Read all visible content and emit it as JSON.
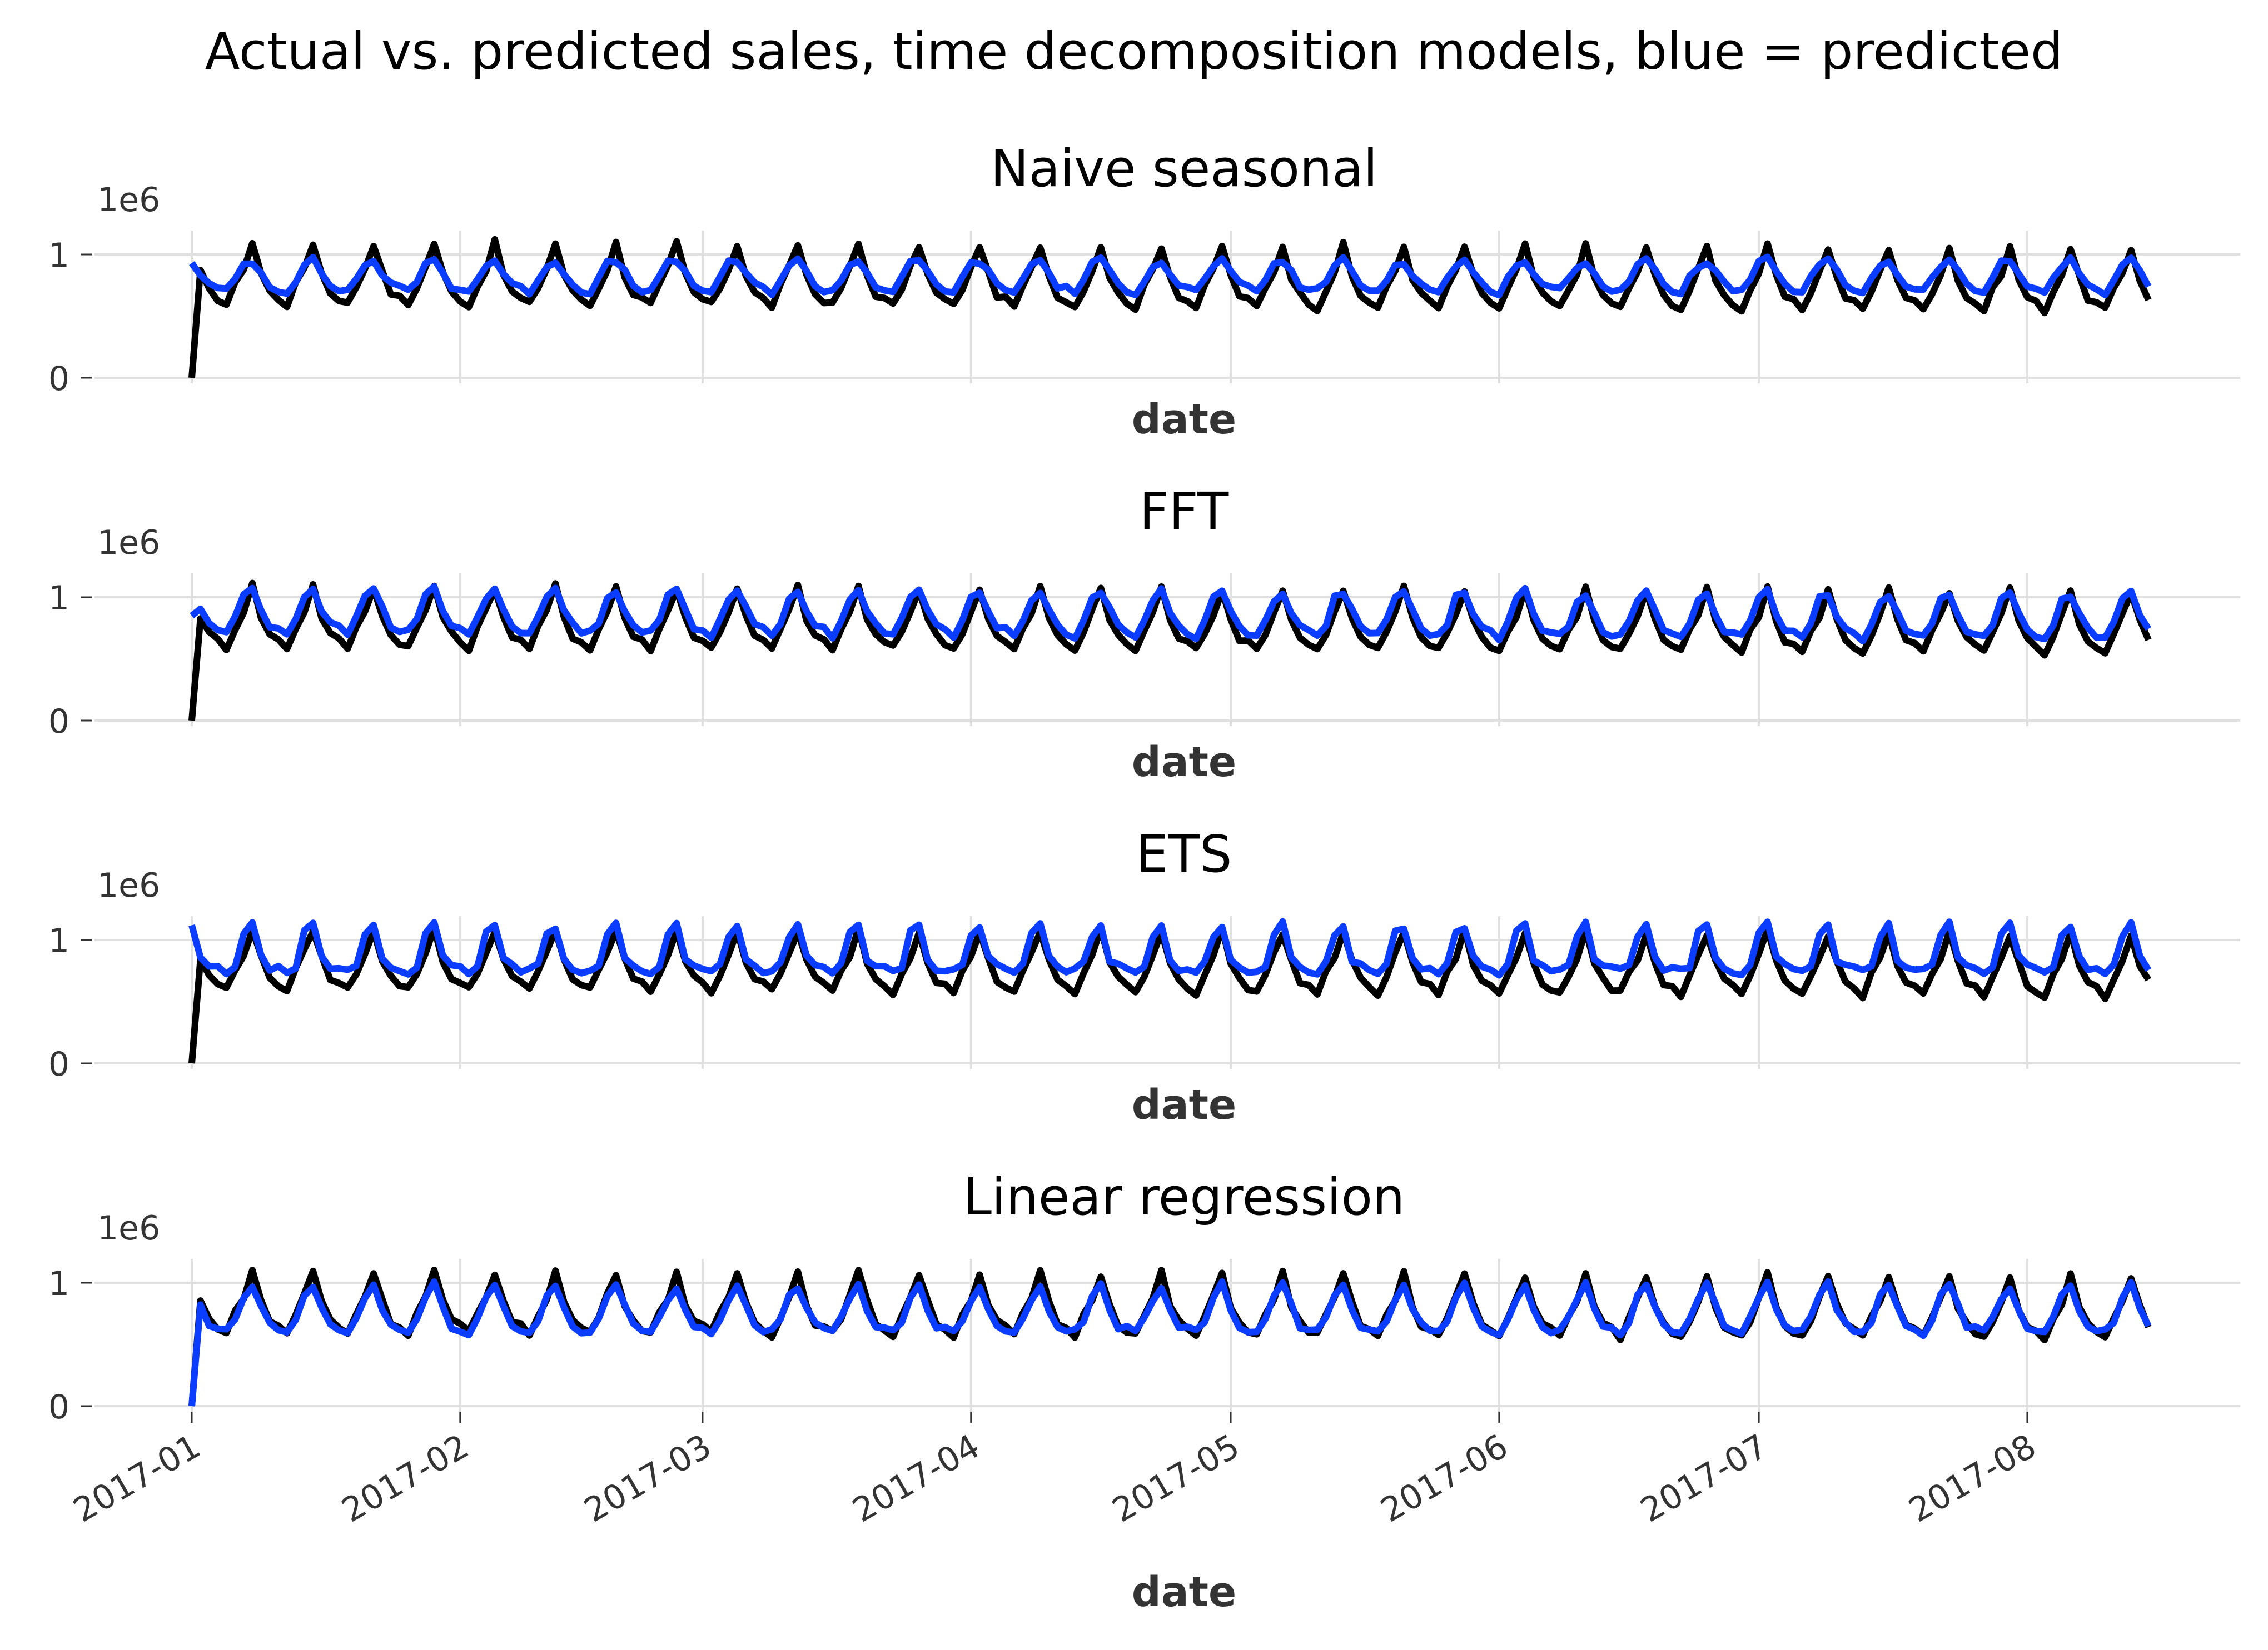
{
  "chart_title": "Actual vs. predicted sales, time decomposition models, blue = predicted",
  "colors": {
    "actual": "#000000",
    "predicted": "#0a3dff",
    "grid": "#e0e0e0",
    "text": "#333333",
    "title": "#000000"
  },
  "chart_data": [
    {
      "type": "line",
      "title": "Naive seasonal",
      "xlabel": "date",
      "ylabel": "",
      "y_offset_label": "1e6",
      "x_range": [
        "2017-01-01",
        "2017-08-15"
      ],
      "ylim": [
        0,
        1.2
      ],
      "x_ticks": [
        "2017-01",
        "2017-02",
        "2017-03",
        "2017-04",
        "2017-05",
        "2017-06",
        "2017-07",
        "2017-08"
      ],
      "y_ticks": [
        "0",
        "1"
      ],
      "grid": true,
      "legend": "none",
      "series": [
        {
          "color": "#000000",
          "role": "actual",
          "start_value": 0,
          "week_pattern": [
            1.1,
            0.85,
            0.7,
            0.65,
            0.6,
            0.75,
            0.9
          ],
          "amplitude": 1.0,
          "late_drift": -0.05
        },
        {
          "color": "#0a3dff",
          "role": "predicted",
          "start_value": 0.93,
          "week_pattern": [
            0.95,
            0.85,
            0.75,
            0.72,
            0.7,
            0.8,
            0.92
          ],
          "amplitude": 1.0,
          "late_drift": 0
        }
      ]
    },
    {
      "type": "line",
      "title": "FFT",
      "xlabel": "date",
      "ylabel": "",
      "y_offset_label": "1e6",
      "x_range": [
        "2017-01-01",
        "2017-08-15"
      ],
      "ylim": [
        0,
        1.2
      ],
      "x_ticks": [
        "2017-01",
        "2017-02",
        "2017-03",
        "2017-04",
        "2017-05",
        "2017-06",
        "2017-07",
        "2017-08"
      ],
      "y_ticks": [
        "0",
        "1"
      ],
      "grid": true,
      "legend": "none",
      "series": [
        {
          "color": "#000000",
          "role": "actual",
          "start_value": 0,
          "week_pattern": [
            1.1,
            0.85,
            0.7,
            0.65,
            0.6,
            0.75,
            0.9
          ],
          "amplitude": 1.0,
          "late_drift": -0.05
        },
        {
          "color": "#0a3dff",
          "role": "predicted",
          "start_value": 0.85,
          "week_pattern": [
            1.05,
            0.9,
            0.78,
            0.75,
            0.72,
            0.82,
            1.0
          ],
          "amplitude": 1.1,
          "late_drift": -0.05
        }
      ]
    },
    {
      "type": "line",
      "title": "ETS",
      "xlabel": "date",
      "ylabel": "",
      "y_offset_label": "1e6",
      "x_range": [
        "2017-01-01",
        "2017-08-15"
      ],
      "ylim": [
        0,
        1.2
      ],
      "x_ticks": [
        "2017-01",
        "2017-02",
        "2017-03",
        "2017-04",
        "2017-05",
        "2017-06",
        "2017-07",
        "2017-08"
      ],
      "y_ticks": [
        "0",
        "1"
      ],
      "grid": true,
      "legend": "none",
      "series": [
        {
          "color": "#000000",
          "role": "actual",
          "start_value": 0,
          "week_pattern": [
            1.1,
            0.85,
            0.7,
            0.65,
            0.6,
            0.75,
            0.9
          ],
          "amplitude": 1.0,
          "late_drift": -0.05
        },
        {
          "color": "#0a3dff",
          "role": "predicted",
          "start_value": 1.12,
          "week_pattern": [
            1.12,
            0.85,
            0.78,
            0.76,
            0.74,
            0.8,
            1.05
          ],
          "amplitude": 1.0,
          "late_drift": 0
        }
      ]
    },
    {
      "type": "line",
      "title": "Linear regression",
      "xlabel": "date",
      "ylabel": "",
      "y_offset_label": "1e6",
      "x_range": [
        "2017-01-01",
        "2017-08-15"
      ],
      "ylim": [
        0,
        1.2
      ],
      "x_ticks": [
        "2017-01",
        "2017-02",
        "2017-03",
        "2017-04",
        "2017-05",
        "2017-06",
        "2017-07",
        "2017-08"
      ],
      "y_ticks": [
        "0",
        "1"
      ],
      "grid": true,
      "legend": "none",
      "series": [
        {
          "color": "#000000",
          "role": "actual",
          "start_value": 0,
          "week_pattern": [
            1.1,
            0.85,
            0.7,
            0.65,
            0.6,
            0.75,
            0.9
          ],
          "amplitude": 1.0,
          "late_drift": -0.05
        },
        {
          "color": "#0a3dff",
          "role": "predicted",
          "start_value": 0,
          "week_pattern": [
            0.98,
            0.8,
            0.65,
            0.62,
            0.6,
            0.7,
            0.88
          ],
          "amplitude": 1.0,
          "late_drift": 0
        }
      ]
    }
  ]
}
